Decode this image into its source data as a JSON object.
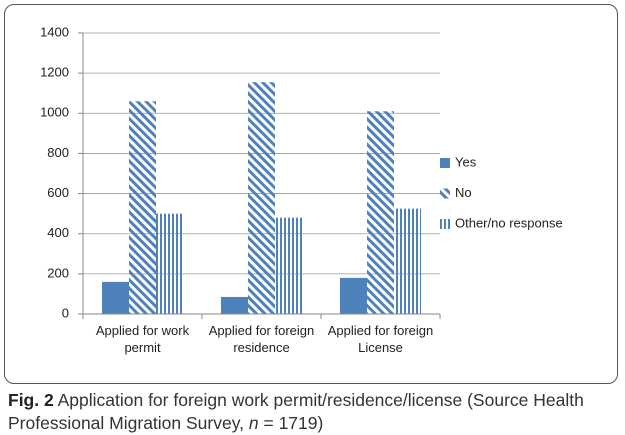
{
  "chart_data": {
    "type": "bar",
    "categories": [
      "Applied for work permit",
      "Applied for foreign residence",
      "Applied for foreign License"
    ],
    "series": [
      {
        "name": "Yes",
        "color": "#4f81bd",
        "pattern": "solid",
        "values": [
          160,
          85,
          180
        ]
      },
      {
        "name": "No",
        "color": "#4f81bd",
        "pattern": "diagonal",
        "values": [
          1060,
          1155,
          1010
        ]
      },
      {
        "name": "Other/no response",
        "color": "#4f81bd",
        "pattern": "vertical",
        "values": [
          500,
          480,
          525
        ]
      }
    ],
    "ylim": [
      0,
      1400
    ],
    "yticks": [
      0,
      200,
      400,
      600,
      800,
      1000,
      1200,
      1400
    ],
    "grid": true,
    "legend": "right"
  },
  "caption": {
    "label": "Fig. 2",
    "text": " Application for foreign work permit/residence/license (Source Health Professional Migration Survey, ",
    "n_symbol": "n",
    "n_text": " = 1719)"
  }
}
